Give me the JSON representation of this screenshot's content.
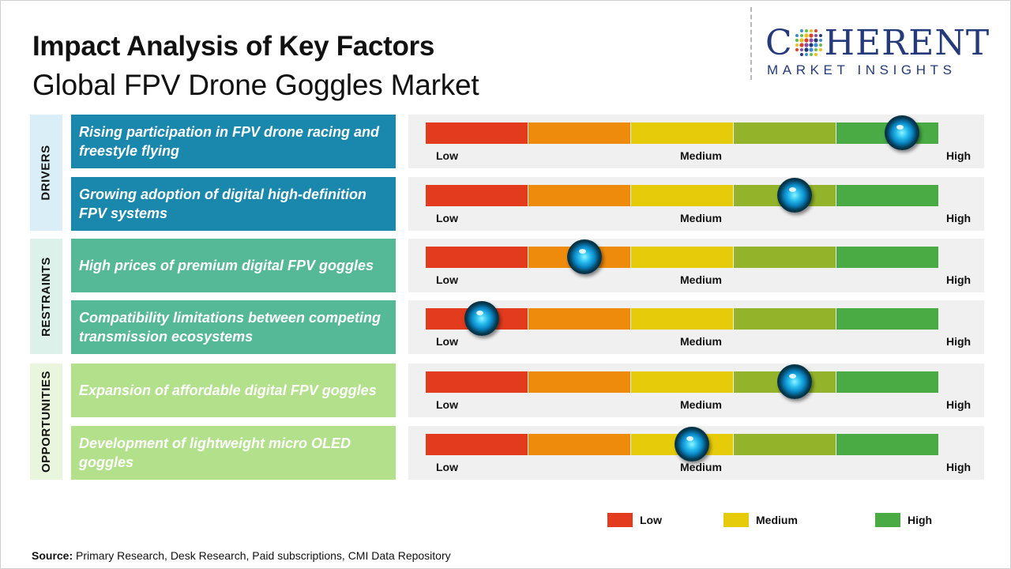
{
  "header": {
    "title": "Impact Analysis of Key Factors",
    "subtitle": "Global FPV Drone Goggles Market"
  },
  "logo": {
    "first_letter": "C",
    "rest": "HERENT",
    "tagline": "MARKET INSIGHTS",
    "name": "logo-mark"
  },
  "colors": {
    "low": "#e23b1e",
    "low_mid": "#ee8a0c",
    "medium": "#e6cb0a",
    "mid_high": "#93b42a",
    "high": "#4aab45",
    "drivers_factor": "#1a87ad",
    "drivers_cat": "#d9eef6",
    "restraints_factor": "#55b896",
    "restraints_cat": "#dbf1e9",
    "opportunities_factor": "#b3e18b",
    "opportunities_cat": "#eaf5de"
  },
  "chart_data": {
    "type": "table",
    "scale": {
      "low_label": "Low",
      "medium_label": "Medium",
      "high_label": "High",
      "range": [
        0,
        1
      ]
    },
    "groups": [
      {
        "category": "DRIVERS",
        "factors": [
          {
            "label": "Rising participation in FPV drone racing and freestyle flying",
            "impact": 0.93
          },
          {
            "label": "Growing adoption of digital high-definition FPV systems",
            "impact": 0.72
          }
        ]
      },
      {
        "category": "RESTRAINTS",
        "factors": [
          {
            "label": "High prices of premium digital FPV goggles",
            "impact": 0.31
          },
          {
            "label": "Compatibility limitations between competing transmission ecosystems",
            "impact": 0.11
          }
        ]
      },
      {
        "category": "OPPORTUNITIES",
        "factors": [
          {
            "label": "Expansion of affordable digital FPV goggles",
            "impact": 0.72
          },
          {
            "label": "Development of lightweight micro OLED goggles",
            "impact": 0.52
          }
        ]
      }
    ],
    "legend": [
      {
        "label": "Low",
        "color": "#e23b1e"
      },
      {
        "label": "Medium",
        "color": "#e6cb0a"
      },
      {
        "label": "High",
        "color": "#4aab45"
      }
    ]
  },
  "source": {
    "prefix": "Source:",
    "text": " Primary Research, Desk Research, Paid subscriptions, CMI Data Repository"
  }
}
